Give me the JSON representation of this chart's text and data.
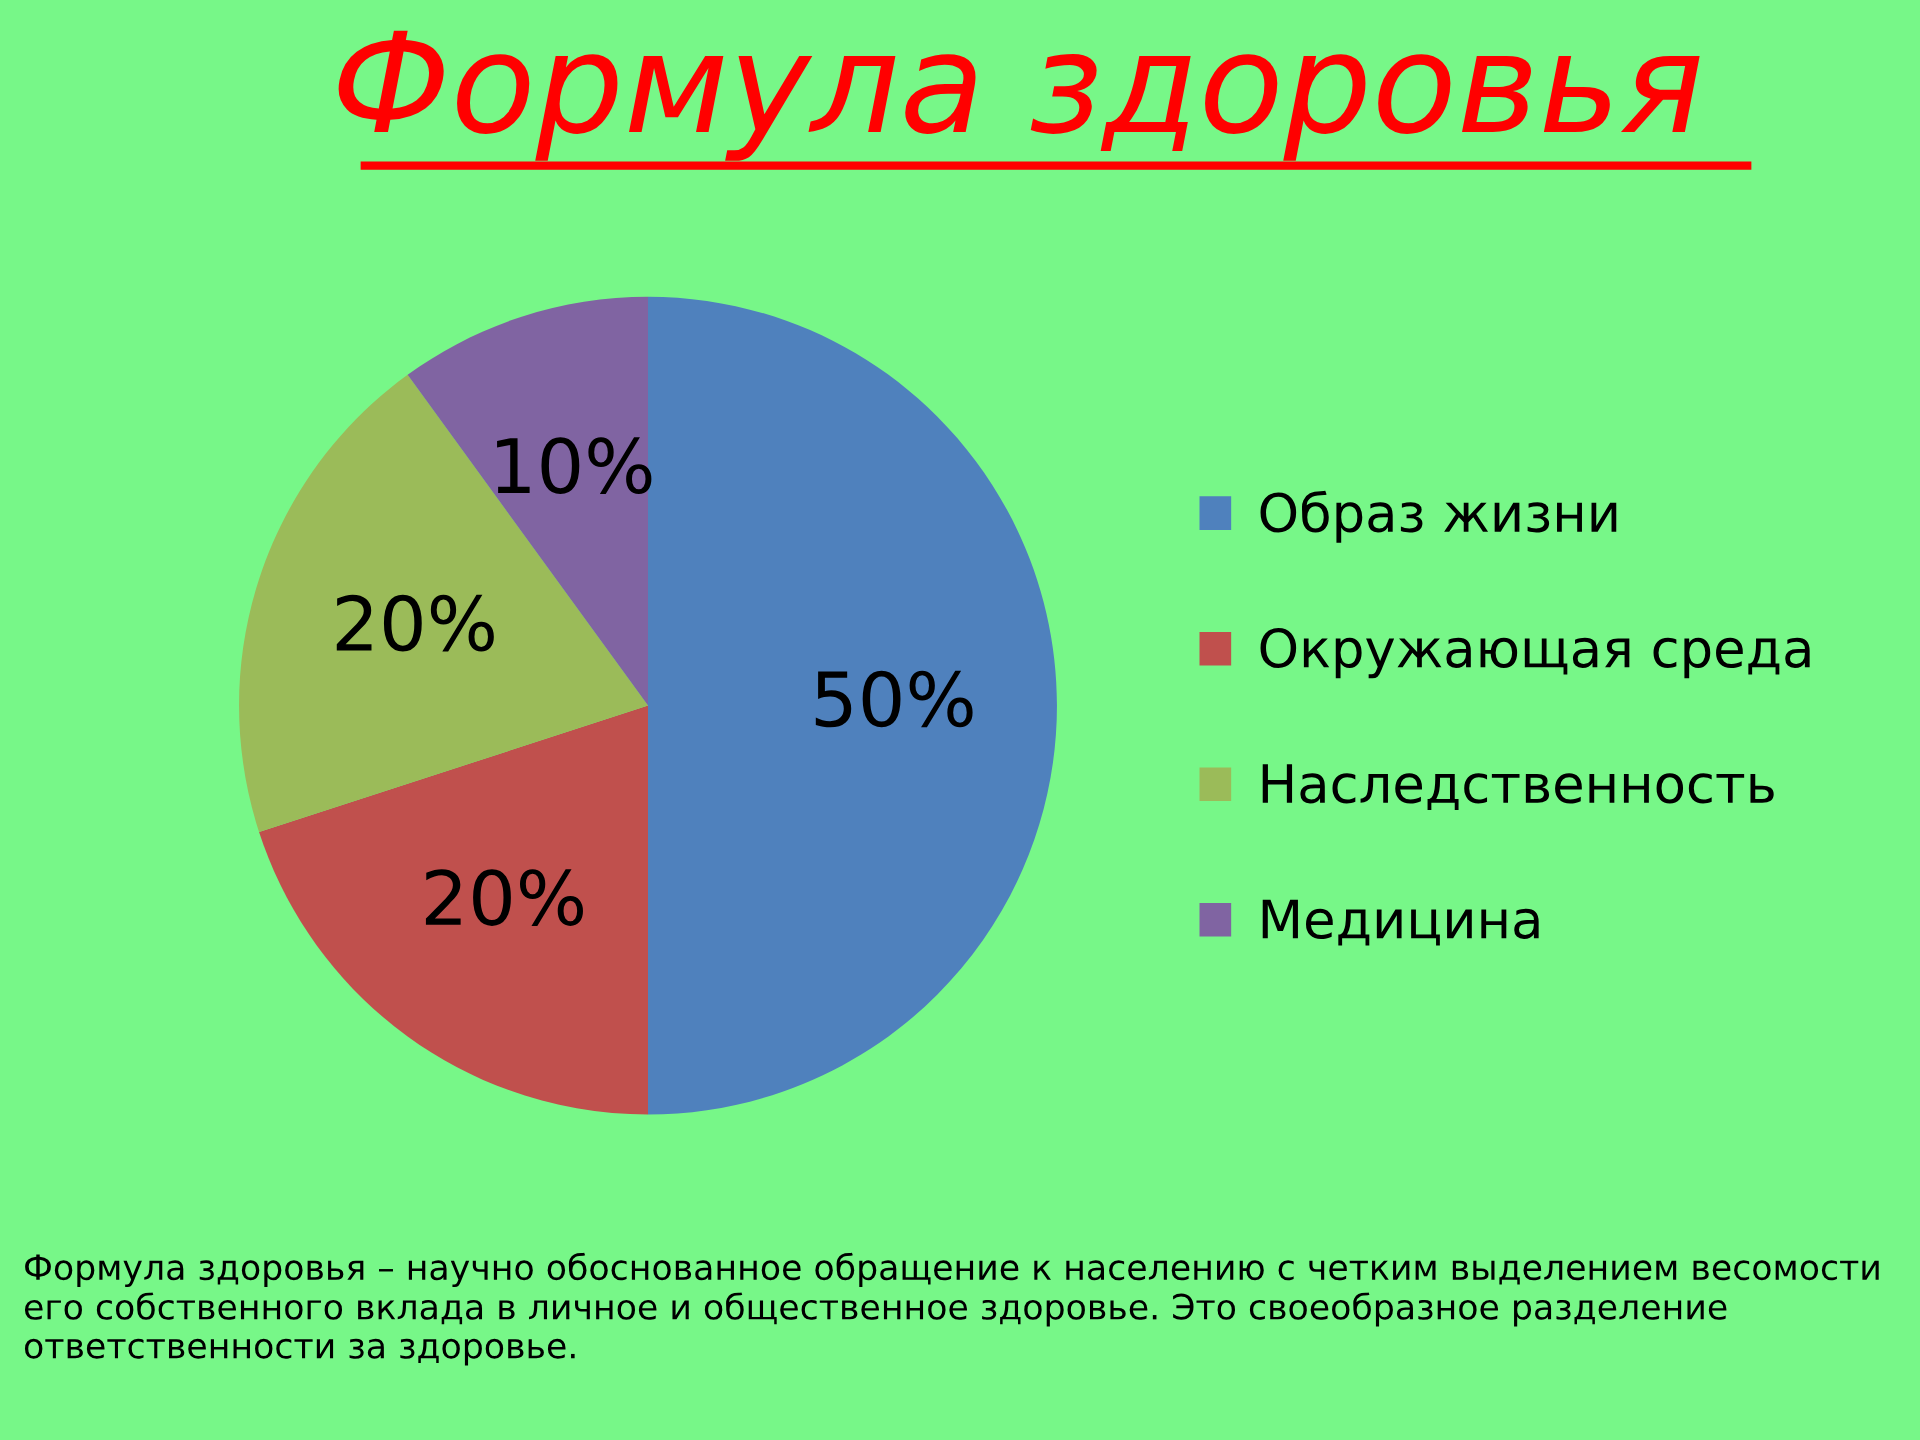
{
  "chart_data": {
    "type": "pie",
    "title": "Формула здоровья",
    "categories": [
      "Образ жизни",
      "Окружающая среда",
      "Наследственность",
      "Медицина"
    ],
    "values": [
      50,
      20,
      20,
      10
    ],
    "colors": [
      "#4f81bd",
      "#c0504d",
      "#9bbb59",
      "#8064a2"
    ],
    "value_labels": [
      "50%",
      "20%",
      "20%",
      "10%"
    ],
    "legend": "right",
    "annotations": [
      "Формула здоровья – научно обоснованное обращение к населению с четким выделением весомости его собственного вклада в личное и общественное здоровье. Это своеобразное разделение ответственности за здоровье."
    ]
  }
}
